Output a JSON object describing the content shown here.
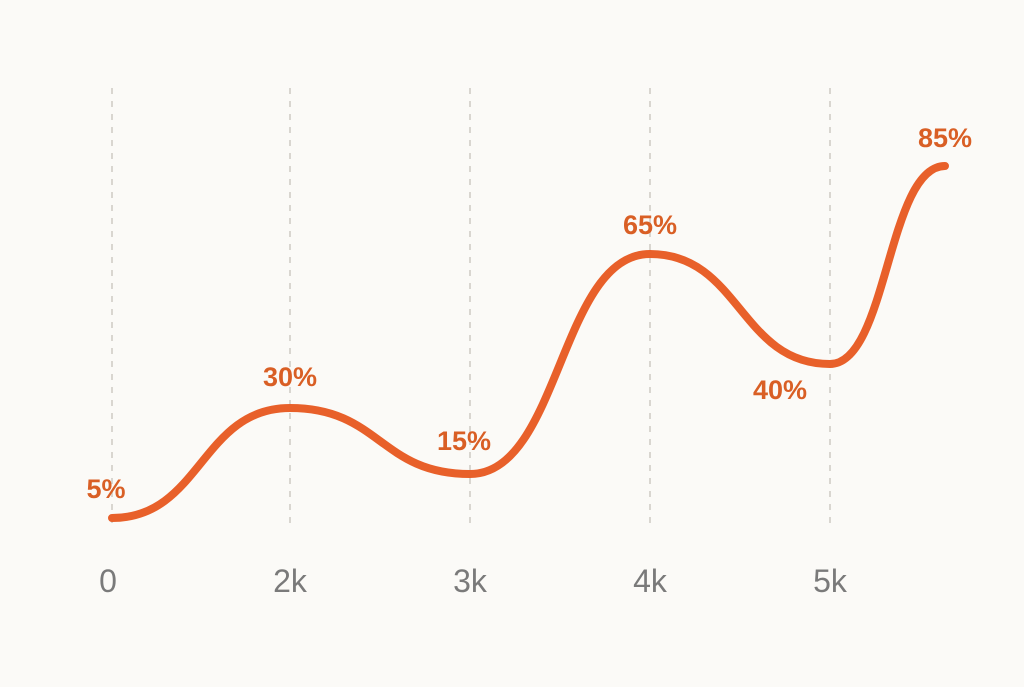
{
  "chart_data": {
    "type": "line",
    "categories": [
      "0",
      "2k",
      "3k",
      "4k",
      "5k",
      ""
    ],
    "series": [
      {
        "values": [
          5,
          30,
          15,
          65,
          40,
          85
        ],
        "labels": [
          "5%",
          "30%",
          "15%",
          "65%",
          "40%",
          "85%"
        ],
        "color": "#e8602a"
      }
    ],
    "ylim": [
      0,
      100
    ],
    "grid": "vertical-dashed",
    "legend": "none",
    "smooth": true,
    "colors": {
      "line": "#e8602a",
      "data_label": "#d95f25",
      "tick": "#7a7a7a",
      "grid": "#d9d6d0",
      "background": "#fbfaf7"
    }
  }
}
